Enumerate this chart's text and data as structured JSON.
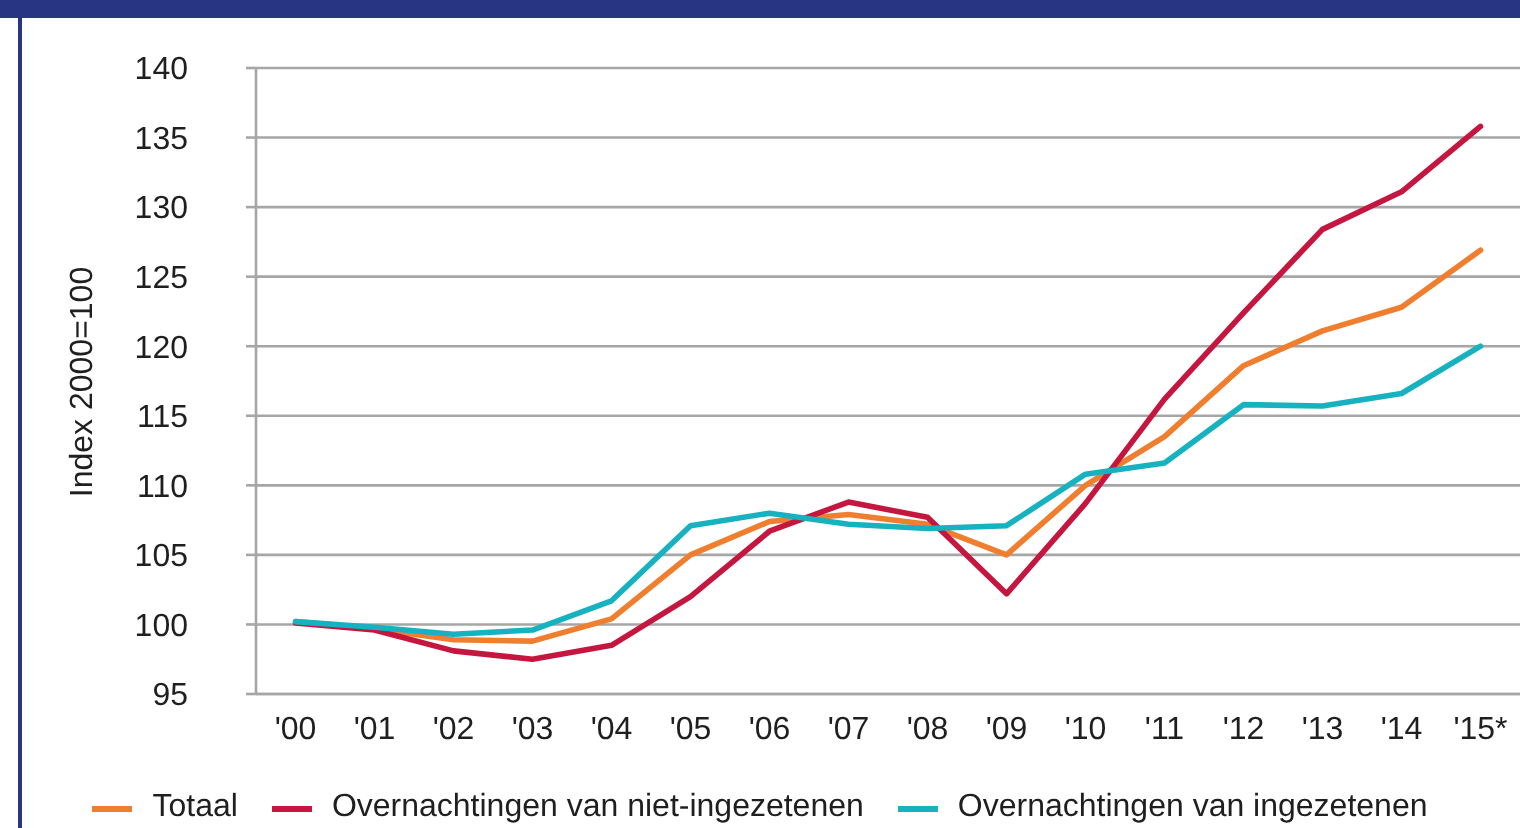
{
  "chart_data": {
    "type": "line",
    "categories": [
      "'00",
      "'01",
      "'02",
      "'03",
      "'04",
      "'05",
      "'06",
      "'07",
      "'08",
      "'09",
      "'10",
      "'11",
      "'12",
      "'13",
      "'14",
      "'15*"
    ],
    "ylabel": "Index 2000=100",
    "ylim": [
      95,
      140
    ],
    "yticks": [
      95,
      100,
      105,
      110,
      115,
      120,
      125,
      130,
      135,
      140
    ],
    "grid": "y",
    "legend": "bottom",
    "series": [
      {
        "name": "Totaal",
        "color": "#ef7f2f",
        "values": [
          100.2,
          99.7,
          98.9,
          98.8,
          100.4,
          105.0,
          107.4,
          107.9,
          107.2,
          105.0,
          110.0,
          113.5,
          118.6,
          121.1,
          122.8,
          126.9
        ]
      },
      {
        "name": "Overnachtingen van niet-ingezetenen",
        "color": "#c5163f",
        "values": [
          100.1,
          99.6,
          98.1,
          97.5,
          98.5,
          102.0,
          106.7,
          108.8,
          107.7,
          102.2,
          108.7,
          116.2,
          122.4,
          128.4,
          131.1,
          135.8
        ]
      },
      {
        "name": "Overnachtingen van ingezetenen",
        "color": "#17b2c0",
        "values": [
          100.2,
          99.8,
          99.3,
          99.6,
          101.7,
          107.1,
          108.0,
          107.2,
          106.9,
          107.1,
          110.8,
          111.6,
          115.8,
          115.7,
          116.6,
          120.0
        ]
      }
    ]
  }
}
